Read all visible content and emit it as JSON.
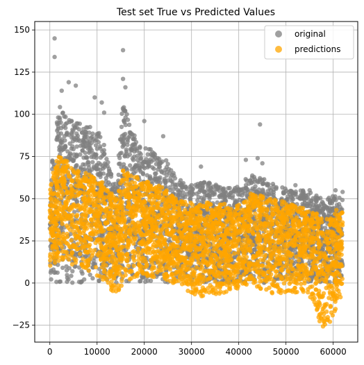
{
  "chart_data": {
    "type": "scatter",
    "title": "Test set True vs Predicted Values",
    "xlabel": "",
    "ylabel": "",
    "xlim": [
      -3200,
      65200
    ],
    "ylim": [
      -35,
      155
    ],
    "xticks": [
      0,
      10000,
      20000,
      30000,
      40000,
      50000,
      60000
    ],
    "xtick_labels": [
      "0",
      "10000",
      "20000",
      "30000",
      "40000",
      "50000",
      "60000"
    ],
    "yticks": [
      -25,
      0,
      25,
      50,
      75,
      100,
      125,
      150
    ],
    "ytick_labels": [
      "−25",
      "0",
      "25",
      "50",
      "75",
      "100",
      "125",
      "150"
    ],
    "grid": true,
    "legend_position": "top-right",
    "series": [
      {
        "name": "original",
        "color": "#808080",
        "alpha": 0.75,
        "envelope": {
          "x": [
            0,
            1000,
            2000,
            3000,
            5000,
            7000,
            9000,
            11000,
            12500,
            14000,
            15500,
            17000,
            19000,
            21000,
            23000,
            25000,
            27000,
            30000,
            33000,
            36000,
            39000,
            41000,
            42500,
            45000,
            48000,
            51000,
            54000,
            56500,
            58000,
            60000,
            62000
          ],
          "low": [
            0,
            0,
            0,
            0,
            0,
            0,
            0,
            0,
            0,
            0,
            0,
            0,
            0,
            0,
            0,
            0,
            0,
            0,
            0,
            0,
            0,
            0,
            0,
            0,
            0,
            0,
            0,
            0,
            0,
            0,
            0
          ],
          "high": [
            62,
            88,
            105,
            100,
            98,
            95,
            92,
            88,
            70,
            58,
            110,
            92,
            84,
            80,
            76,
            72,
            62,
            58,
            60,
            58,
            56,
            60,
            65,
            62,
            58,
            55,
            55,
            52,
            50,
            52,
            52
          ]
        },
        "outliers": [
          {
            "x": 1000,
            "y": 145
          },
          {
            "x": 1000,
            "y": 134
          },
          {
            "x": 15500,
            "y": 138
          },
          {
            "x": 15500,
            "y": 121
          },
          {
            "x": 16000,
            "y": 116
          },
          {
            "x": 4000,
            "y": 119
          },
          {
            "x": 5500,
            "y": 117
          },
          {
            "x": 9500,
            "y": 110
          },
          {
            "x": 11000,
            "y": 107
          },
          {
            "x": 11500,
            "y": 101
          },
          {
            "x": 2500,
            "y": 114
          },
          {
            "x": 20000,
            "y": 96
          },
          {
            "x": 24000,
            "y": 87
          },
          {
            "x": 44500,
            "y": 94
          },
          {
            "x": 44000,
            "y": 74
          },
          {
            "x": 45000,
            "y": 71
          },
          {
            "x": 41500,
            "y": 73
          },
          {
            "x": 32000,
            "y": 69
          },
          {
            "x": 30000,
            "y": 58
          },
          {
            "x": 52000,
            "y": 58
          },
          {
            "x": 55000,
            "y": 55
          },
          {
            "x": 60500,
            "y": 55
          },
          {
            "x": 62000,
            "y": 54
          },
          {
            "x": 58000,
            "y": 46
          },
          {
            "x": 61500,
            "y": 45
          }
        ]
      },
      {
        "name": "predictions",
        "color": "#ffa500",
        "alpha": 0.75,
        "envelope": {
          "x": [
            0,
            1000,
            2000,
            3000,
            5000,
            7000,
            9000,
            11000,
            12500,
            14000,
            15500,
            17000,
            19000,
            21000,
            23000,
            25000,
            27000,
            29000,
            31000,
            33000,
            35000,
            37000,
            39000,
            41000,
            43000,
            45000,
            47000,
            49000,
            51000,
            53000,
            55000,
            56500,
            57500,
            58500,
            60000,
            61000,
            62000
          ],
          "low": [
            8,
            10,
            12,
            12,
            10,
            8,
            6,
            2,
            -4,
            -8,
            0,
            2,
            3,
            4,
            3,
            0,
            -3,
            -6,
            -8,
            -9,
            -8,
            -6,
            -4,
            -2,
            -2,
            -4,
            -6,
            -8,
            -5,
            -6,
            -8,
            -20,
            -27,
            -25,
            -22,
            -10,
            -8
          ],
          "high": [
            55,
            70,
            77,
            75,
            68,
            66,
            64,
            60,
            55,
            50,
            67,
            65,
            62,
            60,
            58,
            55,
            50,
            48,
            47,
            48,
            48,
            47,
            46,
            48,
            55,
            52,
            50,
            49,
            47,
            45,
            44,
            42,
            40,
            38,
            40,
            45,
            42
          ]
        }
      }
    ]
  }
}
